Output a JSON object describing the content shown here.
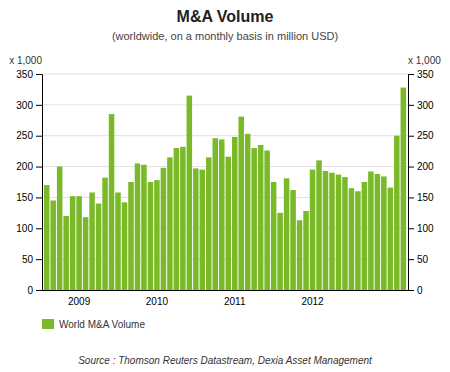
{
  "chart_data": {
    "type": "bar",
    "title": "M&A Volume",
    "subtitle": "(worldwide, on a monthly basis in million USD)",
    "ylabel": "x 1,000",
    "y2label": "x 1,000",
    "annotations": [
      "Source : Thomson Reuters Datastream, Dexia Asset Management"
    ],
    "categories": [
      null,
      null,
      null,
      null,
      null,
      "2009",
      null,
      null,
      null,
      null,
      null,
      null,
      null,
      null,
      null,
      null,
      null,
      "2010",
      null,
      null,
      null,
      null,
      null,
      null,
      null,
      null,
      null,
      null,
      null,
      "2011",
      null,
      null,
      null,
      null,
      null,
      null,
      null,
      null,
      null,
      null,
      null,
      "2012",
      null,
      null,
      null,
      null,
      null,
      null,
      null,
      null,
      null,
      null,
      null,
      null,
      null,
      null
    ],
    "series": [
      {
        "name": "World M&A Volume",
        "color": "#7aba28",
        "values": [
          170,
          145,
          200,
          120,
          152,
          152,
          118,
          158,
          140,
          182,
          285,
          158,
          142,
          175,
          205,
          203,
          175,
          178,
          198,
          215,
          230,
          232,
          315,
          197,
          195,
          215,
          246,
          244,
          216,
          248,
          281,
          253,
          230,
          235,
          226,
          175,
          125,
          181,
          162,
          113,
          128,
          195,
          210,
          193,
          190,
          187,
          183,
          165,
          160,
          175,
          192,
          188,
          184,
          166,
          250,
          328
        ]
      }
    ],
    "ylim": [
      0,
      350
    ],
    "yticks": [
      0,
      50,
      100,
      150,
      200,
      250,
      300,
      350
    ],
    "y2lim": [
      0,
      350
    ],
    "y2ticks": [
      0,
      50,
      100,
      150,
      200,
      250,
      300,
      350
    ],
    "grid": true,
    "legend": "bottom"
  }
}
